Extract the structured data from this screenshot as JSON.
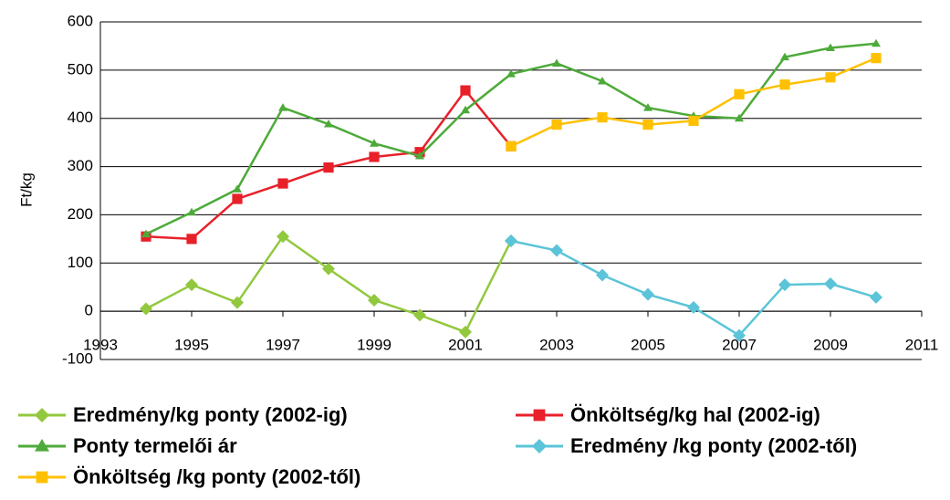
{
  "chart_data": {
    "type": "line",
    "y_label": "Ft/kg",
    "x": [
      1994,
      1995,
      1996,
      1997,
      1998,
      1999,
      2000,
      2001,
      2002,
      2003,
      2004,
      2005,
      2006,
      2007,
      2008,
      2009,
      2010
    ],
    "series": [
      {
        "name": "Eredmény/kg ponty (2002-ig)",
        "color": "#92c83e",
        "marker": "diamond",
        "values": [
          5,
          55,
          18,
          155,
          88,
          23,
          -8,
          -43,
          146,
          null,
          null,
          null,
          null,
          null,
          null,
          null,
          null
        ]
      },
      {
        "name": "Önköltség/kg hal (2002-ig)",
        "color": "#e8202a",
        "marker": "square",
        "values": [
          155,
          150,
          233,
          265,
          298,
          320,
          330,
          458,
          342,
          null,
          null,
          null,
          null,
          null,
          null,
          null,
          null
        ]
      },
      {
        "name": "Ponty termelői ár",
        "color": "#4daa3a",
        "marker": "triangle",
        "values": [
          160,
          205,
          253,
          422,
          388,
          348,
          322,
          417,
          492,
          514,
          477,
          422,
          405,
          400,
          527,
          546,
          555
        ]
      },
      {
        "name": "Eredmény /kg ponty (2002-től)",
        "color": "#5bc4d8",
        "marker": "diamond",
        "values": [
          null,
          null,
          null,
          null,
          null,
          null,
          null,
          null,
          146,
          126,
          75,
          35,
          8,
          -50,
          55,
          57,
          29
        ]
      },
      {
        "name": "Önköltség /kg ponty (2002-től)",
        "color": "#ffc000",
        "marker": "square",
        "values": [
          null,
          null,
          null,
          null,
          null,
          null,
          null,
          null,
          342,
          387,
          402,
          387,
          395,
          450,
          470,
          485,
          525
        ]
      }
    ],
    "xlim": [
      1993,
      2011
    ],
    "xticks": [
      1993,
      1995,
      1997,
      1999,
      2001,
      2003,
      2005,
      2007,
      2009,
      2011
    ],
    "ylim": [
      -100,
      600
    ],
    "yticks": [
      -100,
      0,
      100,
      200,
      300,
      400,
      500,
      600
    ],
    "grid": true
  }
}
